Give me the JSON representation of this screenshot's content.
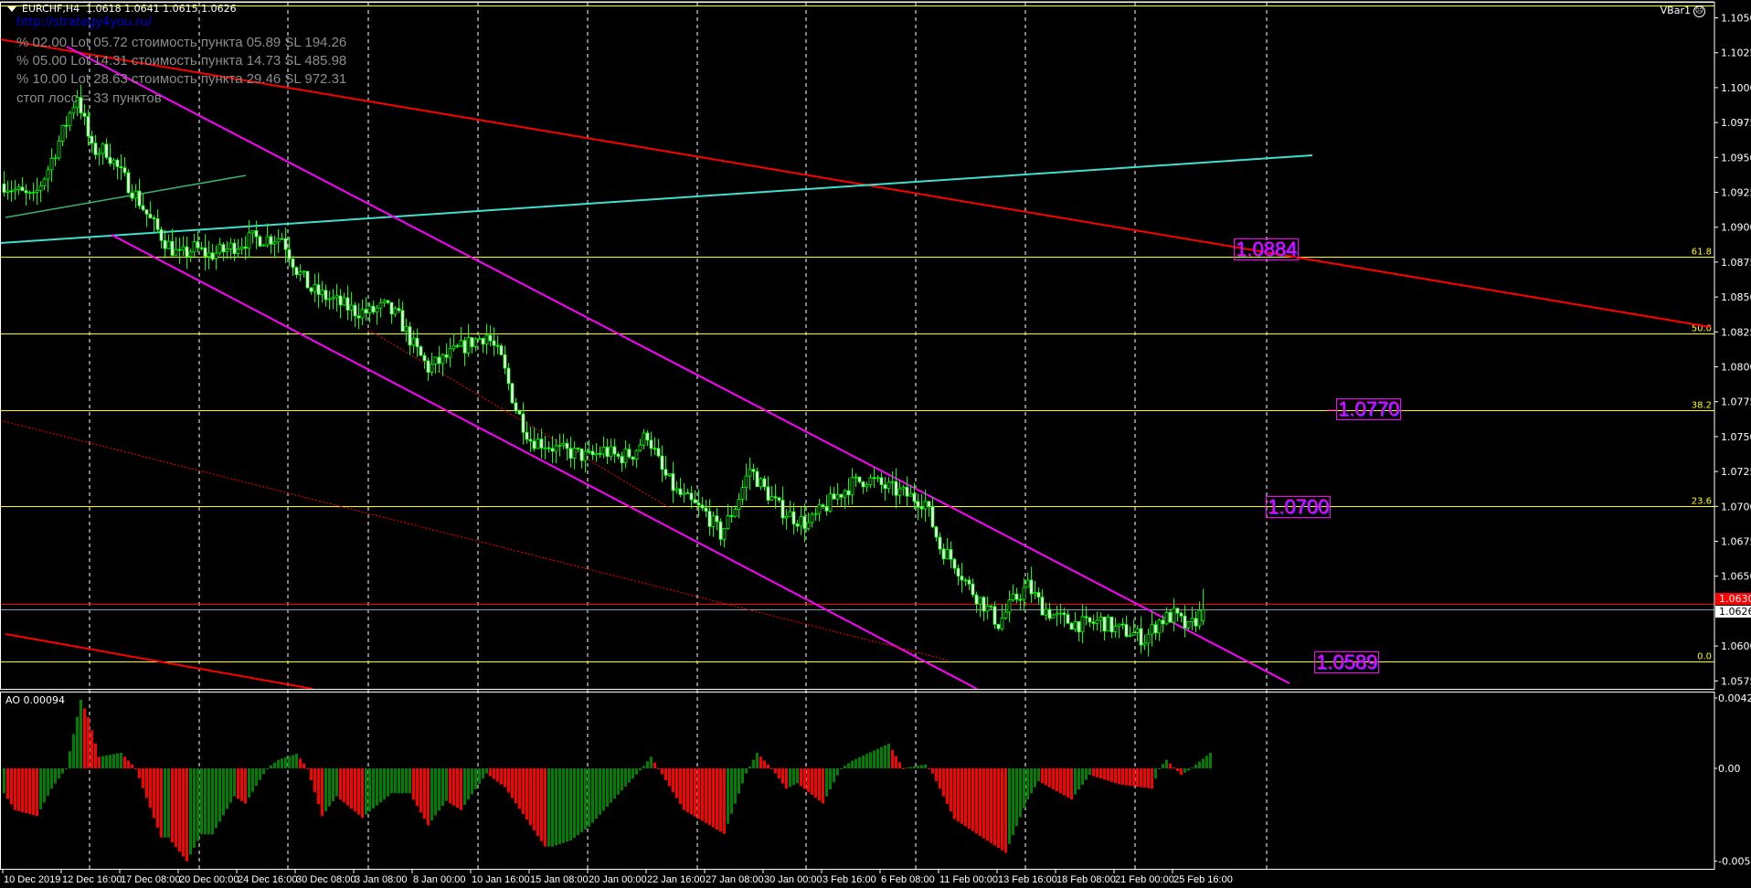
{
  "header": {
    "symbol": "EURCHF,H4",
    "ohlc": "1.0618 1.0641 1.0615 1.0626",
    "link": "http://strategy4you.ru/",
    "info_lines": [
      "% 02.00  Lot 05.72  стоимость пункта 05.89  SL 194.26",
      "% 05.00  Lot 14.31  стоимость пункта 14.73  SL 485.98",
      "% 10.00  Lot 28.63  стоимость пункта 29.46  SL 972.31",
      "стоп лосс = 33 пунктов"
    ],
    "indicator_name": "VBar1",
    "indicator_icon": "sad-face-icon"
  },
  "colors": {
    "background": "#000000",
    "bars": "#00ff00",
    "fib": "#ffff00",
    "trend_red": "#ff0000",
    "trend_cyan": "#40e0d0",
    "channel": "#ff00ff",
    "ao_up": "#008000",
    "ao_down": "#ff0000",
    "bid_line": "#8899aa"
  },
  "chart_data": [
    {
      "type": "candlestick",
      "symbol": "EURCHF",
      "timeframe": "H4",
      "ylim": [
        1.0565,
        1.1062
      ],
      "y_ticks": [
        "1.1050",
        "1.1025",
        "1.1000",
        "1.0975",
        "1.0950",
        "1.0925",
        "1.0900",
        "1.0875",
        "1.0850",
        "1.0825",
        "1.0800",
        "1.0775",
        "1.0750",
        "1.0725",
        "1.0700",
        "1.0675",
        "1.0650",
        "1.0600",
        "1.0575"
      ],
      "x_ticks": [
        "10 Dec 2019",
        "12 Dec 16:00",
        "17 Dec 08:00",
        "20 Dec 00:00",
        "24 Dec 16:00",
        "30 Dec 08:00",
        "3 Jan 08:00",
        "8 Jan 00:00",
        "10 Jan 16:00",
        "15 Jan 08:00",
        "20 Jan 00:00",
        "22 Jan 16:00",
        "27 Jan 08:00",
        "30 Jan 00:00",
        "3 Feb 16:00",
        "6 Feb 08:00",
        "11 Feb 00:00",
        "13 Feb 16:00",
        "18 Feb 08:00",
        "21 Feb 00:00",
        "25 Feb 16:00"
      ],
      "bars_per_x_tick": 16,
      "close_sample_every_bars": 4,
      "closes": [
        1.0931,
        1.0925,
        1.092,
        1.0942,
        1.0968,
        1.0995,
        1.0955,
        1.0955,
        1.0938,
        1.0923,
        1.0905,
        1.089,
        1.0879,
        1.0885,
        1.088,
        1.0883,
        1.0888,
        1.0892,
        1.0892,
        1.0893,
        1.087,
        1.0855,
        1.085,
        1.0845,
        1.084,
        1.0839,
        1.0843,
        1.0835,
        1.0815,
        1.0799,
        1.0805,
        1.0812,
        1.0818,
        1.0823,
        1.0805,
        1.077,
        1.0748,
        1.0745,
        1.074,
        1.0738,
        1.0735,
        1.074,
        1.0735,
        1.0738,
        1.0752,
        1.0725,
        1.071,
        1.0702,
        1.0695,
        1.068,
        1.07,
        1.0727,
        1.0712,
        1.0699,
        1.0692,
        1.0687,
        1.0698,
        1.0708,
        1.0716,
        1.072,
        1.0715,
        1.0711,
        1.0707,
        1.0703,
        1.0671,
        1.066,
        1.0642,
        1.063,
        1.0616,
        1.0632,
        1.0643,
        1.0628,
        1.062,
        1.0617,
        1.0615,
        1.0618,
        1.0612,
        1.061,
        1.0605,
        1.0618,
        1.0622,
        1.0612,
        1.0626
      ],
      "last_bar": {
        "open": 1.0618,
        "high": 1.0641,
        "low": 1.0615,
        "close": 1.0626
      },
      "bid": "1.0626",
      "red_level": {
        "price": 1.063,
        "label": "1.0630"
      },
      "fibonacci": [
        {
          "label": "0.0",
          "price": 1.0589
        },
        {
          "label": "23.6",
          "price": 1.07
        },
        {
          "label": "38.2",
          "price": 1.0769
        },
        {
          "label": "50.0",
          "price": 1.0824
        },
        {
          "label": "61.8",
          "price": 1.0879
        },
        {
          "label": "",
          "price": 1.1059
        }
      ],
      "price_labels": [
        "1.0884",
        "1.0770",
        "1.0700",
        "1.0589"
      ]
    },
    {
      "type": "bar",
      "title": "AO 0.00094",
      "ylim": [
        -0.00561,
        0.00425
      ],
      "y_ticks": [
        "0.00425",
        "0.00",
        "-0.00561"
      ],
      "points_bar_value": [
        [
          0,
          -0.00151
        ],
        [
          3,
          -0.00252
        ],
        [
          9,
          -0.00289
        ],
        [
          13,
          -0.00123
        ],
        [
          17,
          0
        ],
        [
          21,
          0.00414
        ],
        [
          23,
          0.00309
        ],
        [
          26,
          0.0007
        ],
        [
          32,
          0.00094
        ],
        [
          36,
          0
        ],
        [
          43,
          -0.00418
        ],
        [
          45,
          -0.00418
        ],
        [
          50,
          -0.00561
        ],
        [
          54,
          -0.00399
        ],
        [
          57,
          -0.00399
        ],
        [
          63,
          -0.00169
        ],
        [
          66,
          -0.00212
        ],
        [
          72,
          0
        ],
        [
          75,
          0.00052
        ],
        [
          80,
          0.00088
        ],
        [
          83,
          0
        ],
        [
          87,
          -0.00289
        ],
        [
          91,
          -0.00169
        ],
        [
          98,
          -0.00298
        ],
        [
          106,
          -0.00151
        ],
        [
          111,
          -0.00151
        ],
        [
          116,
          -0.00344
        ],
        [
          121,
          -0.00197
        ],
        [
          125,
          -0.00252
        ],
        [
          132,
          -0.00031
        ],
        [
          137,
          -0.00114
        ],
        [
          148,
          -0.00473
        ],
        [
          150,
          -0.00473
        ],
        [
          155,
          -0.00436
        ],
        [
          160,
          -0.00353
        ],
        [
          174,
          -0.00013
        ],
        [
          177,
          0.0007
        ],
        [
          179,
          0
        ],
        [
          186,
          -0.00252
        ],
        [
          197,
          -0.00396
        ],
        [
          203,
          -0.00031
        ],
        [
          206,
          0.00094
        ],
        [
          210,
          0
        ],
        [
          214,
          -0.00123
        ],
        [
          217,
          -0.0009
        ],
        [
          224,
          -0.00212
        ],
        [
          229,
          0
        ],
        [
          232,
          0.00046
        ],
        [
          242,
          0.00149
        ],
        [
          246,
          0
        ],
        [
          252,
          0.00024
        ],
        [
          254,
          -0.00031
        ],
        [
          260,
          -0.00307
        ],
        [
          274,
          -0.0051
        ],
        [
          280,
          -0.00188
        ],
        [
          283,
          -0.00077
        ],
        [
          292,
          -0.00188
        ],
        [
          297,
          -0.0004
        ],
        [
          305,
          -0.00096
        ],
        [
          314,
          -0.00123
        ],
        [
          316,
          0
        ],
        [
          318,
          0.00052
        ],
        [
          322,
          -0.0004
        ],
        [
          324,
          -0.00013
        ],
        [
          330,
          0.00094
        ]
      ]
    }
  ]
}
